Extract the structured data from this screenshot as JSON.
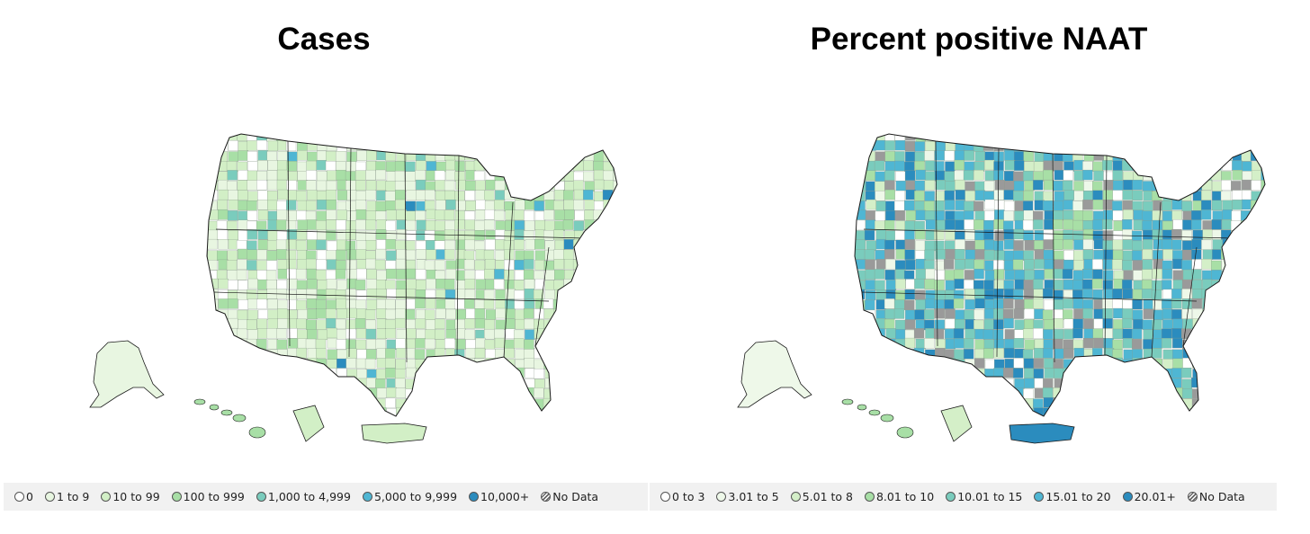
{
  "left": {
    "title": "Cases",
    "legend": [
      {
        "label": "0",
        "color": "#ffffff"
      },
      {
        "label": "1 to 9",
        "color": "#e8f6e1"
      },
      {
        "label": "10 to 99",
        "color": "#d2efc6"
      },
      {
        "label": "100 to 999",
        "color": "#a8dfa6"
      },
      {
        "label": "1,000 to 4,999",
        "color": "#7accbd"
      },
      {
        "label": "5,000 to 9,999",
        "color": "#4fb6d3"
      },
      {
        "label": "10,000+",
        "color": "#2b8cbe"
      },
      {
        "label": "No Data",
        "color": "hatch"
      }
    ]
  },
  "right": {
    "title": "Percent positive NAAT",
    "legend": [
      {
        "label": "0 to 3",
        "color": "#ffffff"
      },
      {
        "label": "3.01 to 5",
        "color": "#eef8e9"
      },
      {
        "label": "5.01 to 8",
        "color": "#d4efc8"
      },
      {
        "label": "8.01 to 10",
        "color": "#a8dfa6"
      },
      {
        "label": "10.01 to 15",
        "color": "#7accbd"
      },
      {
        "label": "15.01 to 20",
        "color": "#4fb6d3"
      },
      {
        "label": "20.01+",
        "color": "#2b8cbe"
      },
      {
        "label": "No Data",
        "color": "hatch"
      }
    ]
  },
  "colors": {
    "no_data_gray": "#9a9a9a",
    "border": "#1a1a1a"
  }
}
